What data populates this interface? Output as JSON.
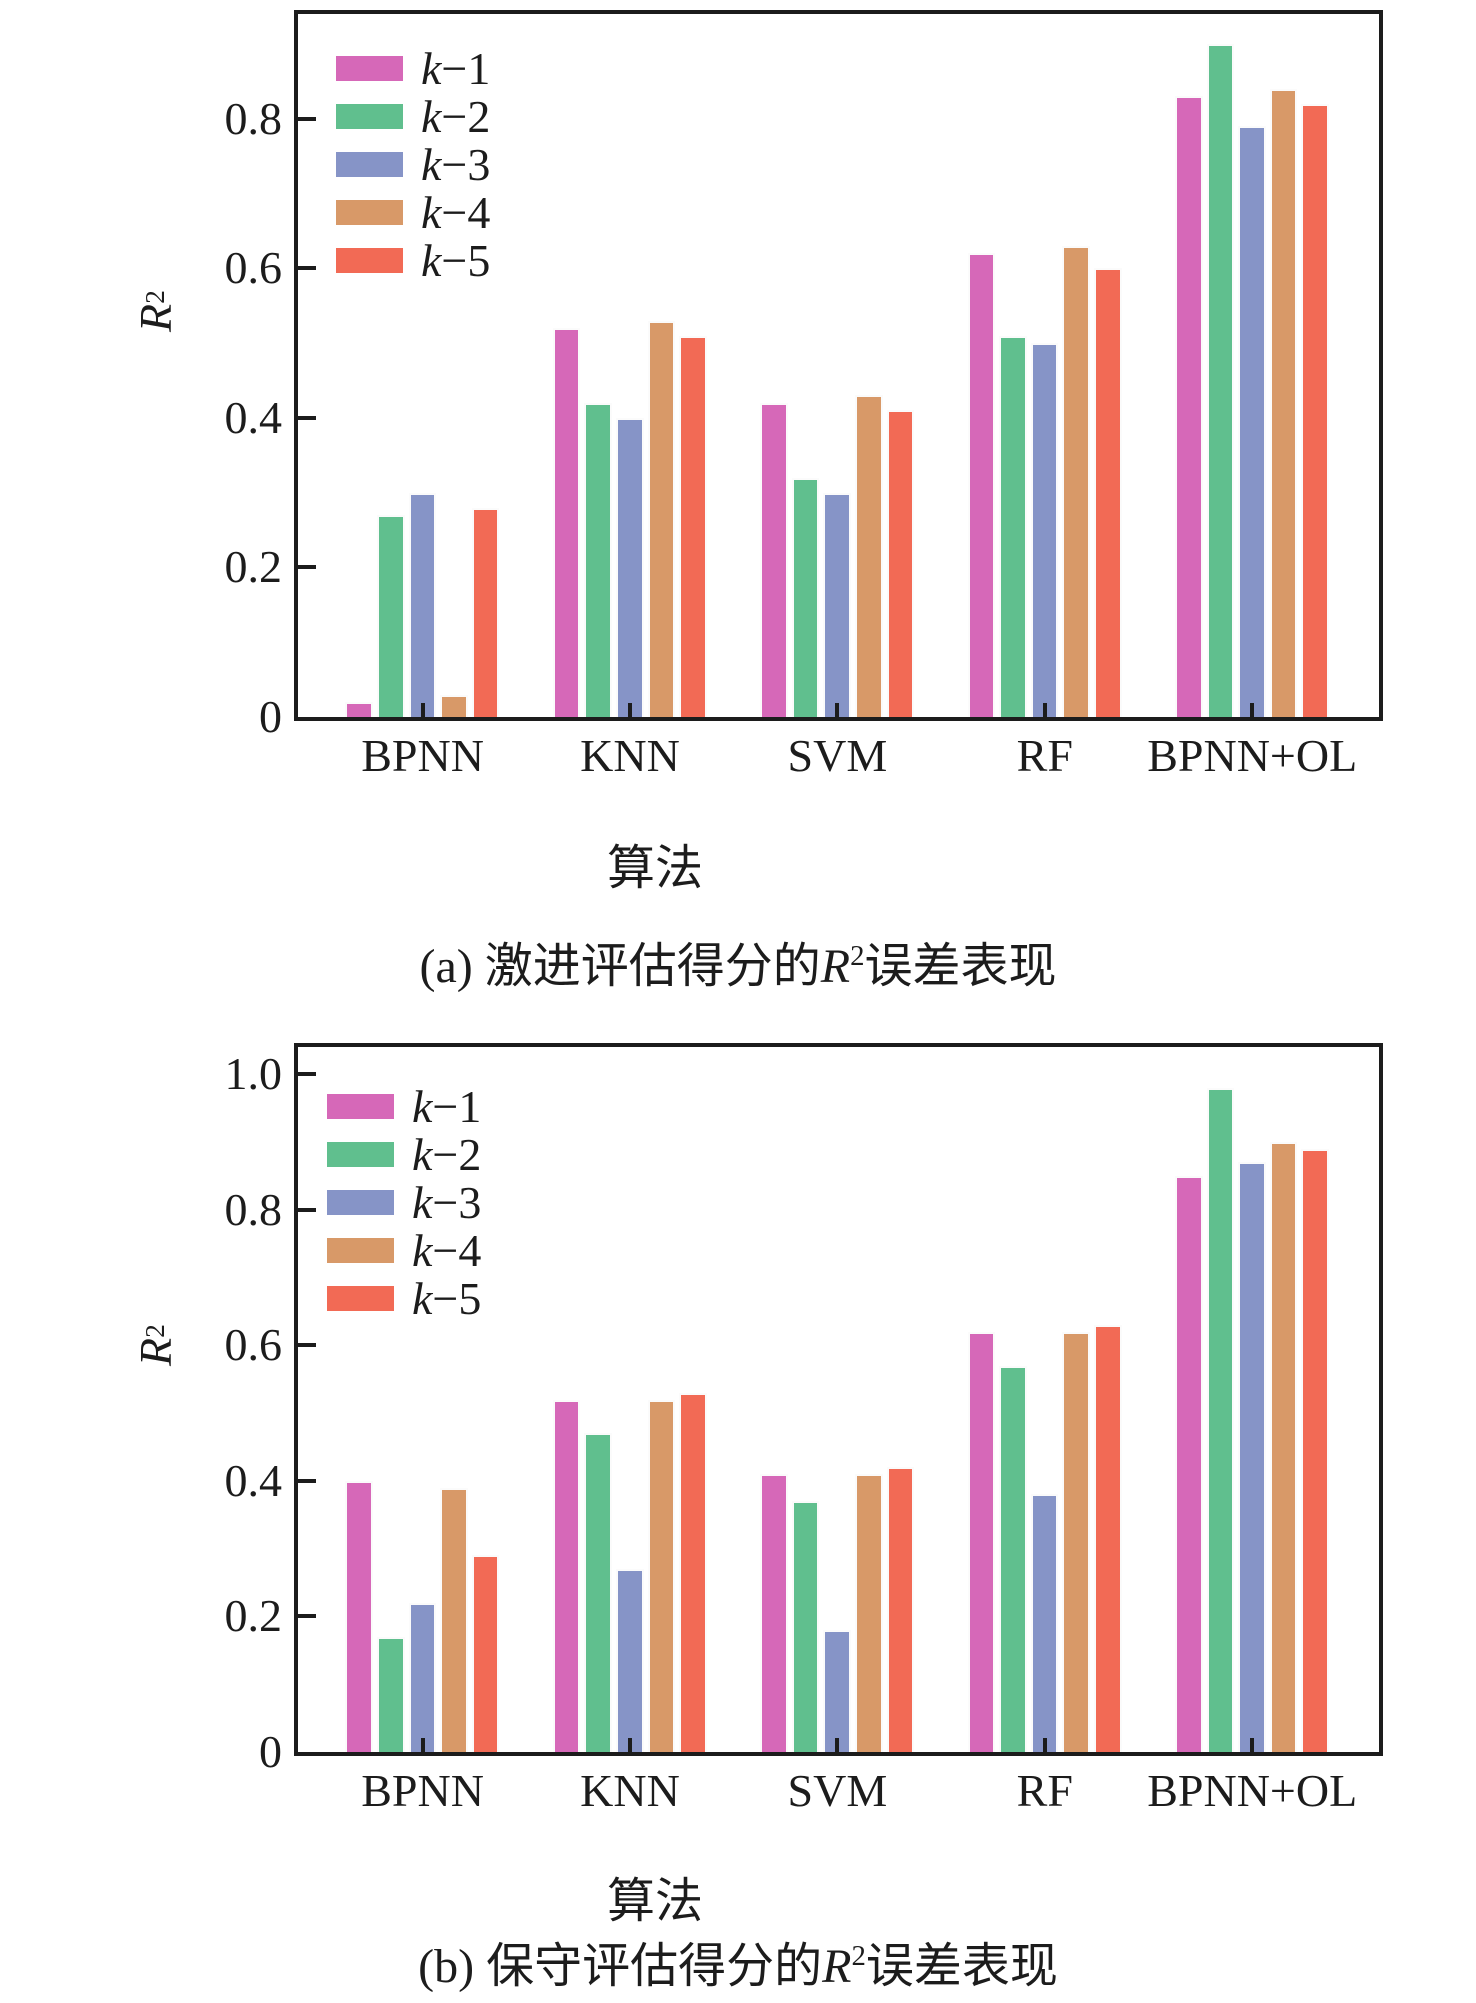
{
  "chart_data": [
    {
      "type": "bar",
      "caption": {
        "prefix": "(a) 激进评估得分的",
        "r_letter": "R",
        "exponent": "2",
        "suffix": "误差表现"
      },
      "axis": {
        "xlabel": "算法",
        "ylabel_letter": "R",
        "ylabel_exponent": "2",
        "yticks": [
          0,
          0.2,
          0.4,
          0.6,
          0.8
        ],
        "ytick_labels": [
          "0",
          "0.2",
          "0.4",
          "0.6",
          "0.8"
        ],
        "ylim": [
          0,
          0.94
        ]
      },
      "grid": false,
      "legend_position": "upper-left",
      "categories": [
        "BPNN",
        "KNN",
        "SVM",
        "RF",
        "BPNN+OL"
      ],
      "series": [
        {
          "name": "k−1",
          "color": "#d668b8",
          "values": [
            0.02,
            0.52,
            0.42,
            0.62,
            0.83
          ]
        },
        {
          "name": "k−2",
          "color": "#60bf8e",
          "values": [
            0.27,
            0.42,
            0.32,
            0.51,
            0.9
          ]
        },
        {
          "name": "k−3",
          "color": "#8694c7",
          "values": [
            0.3,
            0.4,
            0.3,
            0.5,
            0.79
          ]
        },
        {
          "name": "k−4",
          "color": "#d89968",
          "values": [
            0.03,
            0.53,
            0.43,
            0.63,
            0.84
          ]
        },
        {
          "name": "k−5",
          "color": "#f26a55",
          "values": [
            0.28,
            0.51,
            0.41,
            0.6,
            0.82
          ]
        }
      ]
    },
    {
      "type": "bar",
      "caption": {
        "prefix": "(b) 保守评估得分的",
        "r_letter": "R",
        "exponent": "2",
        "suffix": "误差表现"
      },
      "axis": {
        "xlabel": "算法",
        "ylabel_letter": "R",
        "ylabel_exponent": "2",
        "yticks": [
          0,
          0.2,
          0.4,
          0.6,
          0.8,
          1.0
        ],
        "ytick_labels": [
          "0",
          "0.2",
          "0.4",
          "0.6",
          "0.8",
          "1.0"
        ],
        "ylim": [
          0,
          1.04
        ]
      },
      "grid": false,
      "legend_position": "upper-left",
      "categories": [
        "BPNN",
        "KNN",
        "SVM",
        "RF",
        "BPNN+OL"
      ],
      "series": [
        {
          "name": "k−1",
          "color": "#d668b8",
          "values": [
            0.4,
            0.52,
            0.41,
            0.62,
            0.85
          ]
        },
        {
          "name": "k−2",
          "color": "#60bf8e",
          "values": [
            0.17,
            0.47,
            0.37,
            0.57,
            0.98
          ]
        },
        {
          "name": "k−3",
          "color": "#8694c7",
          "values": [
            0.22,
            0.27,
            0.18,
            0.38,
            0.87
          ]
        },
        {
          "name": "k−4",
          "color": "#d89968",
          "values": [
            0.39,
            0.52,
            0.41,
            0.62,
            0.9
          ]
        },
        {
          "name": "k−5",
          "color": "#f26a55",
          "values": [
            0.29,
            0.53,
            0.42,
            0.63,
            0.89
          ]
        }
      ]
    }
  ]
}
